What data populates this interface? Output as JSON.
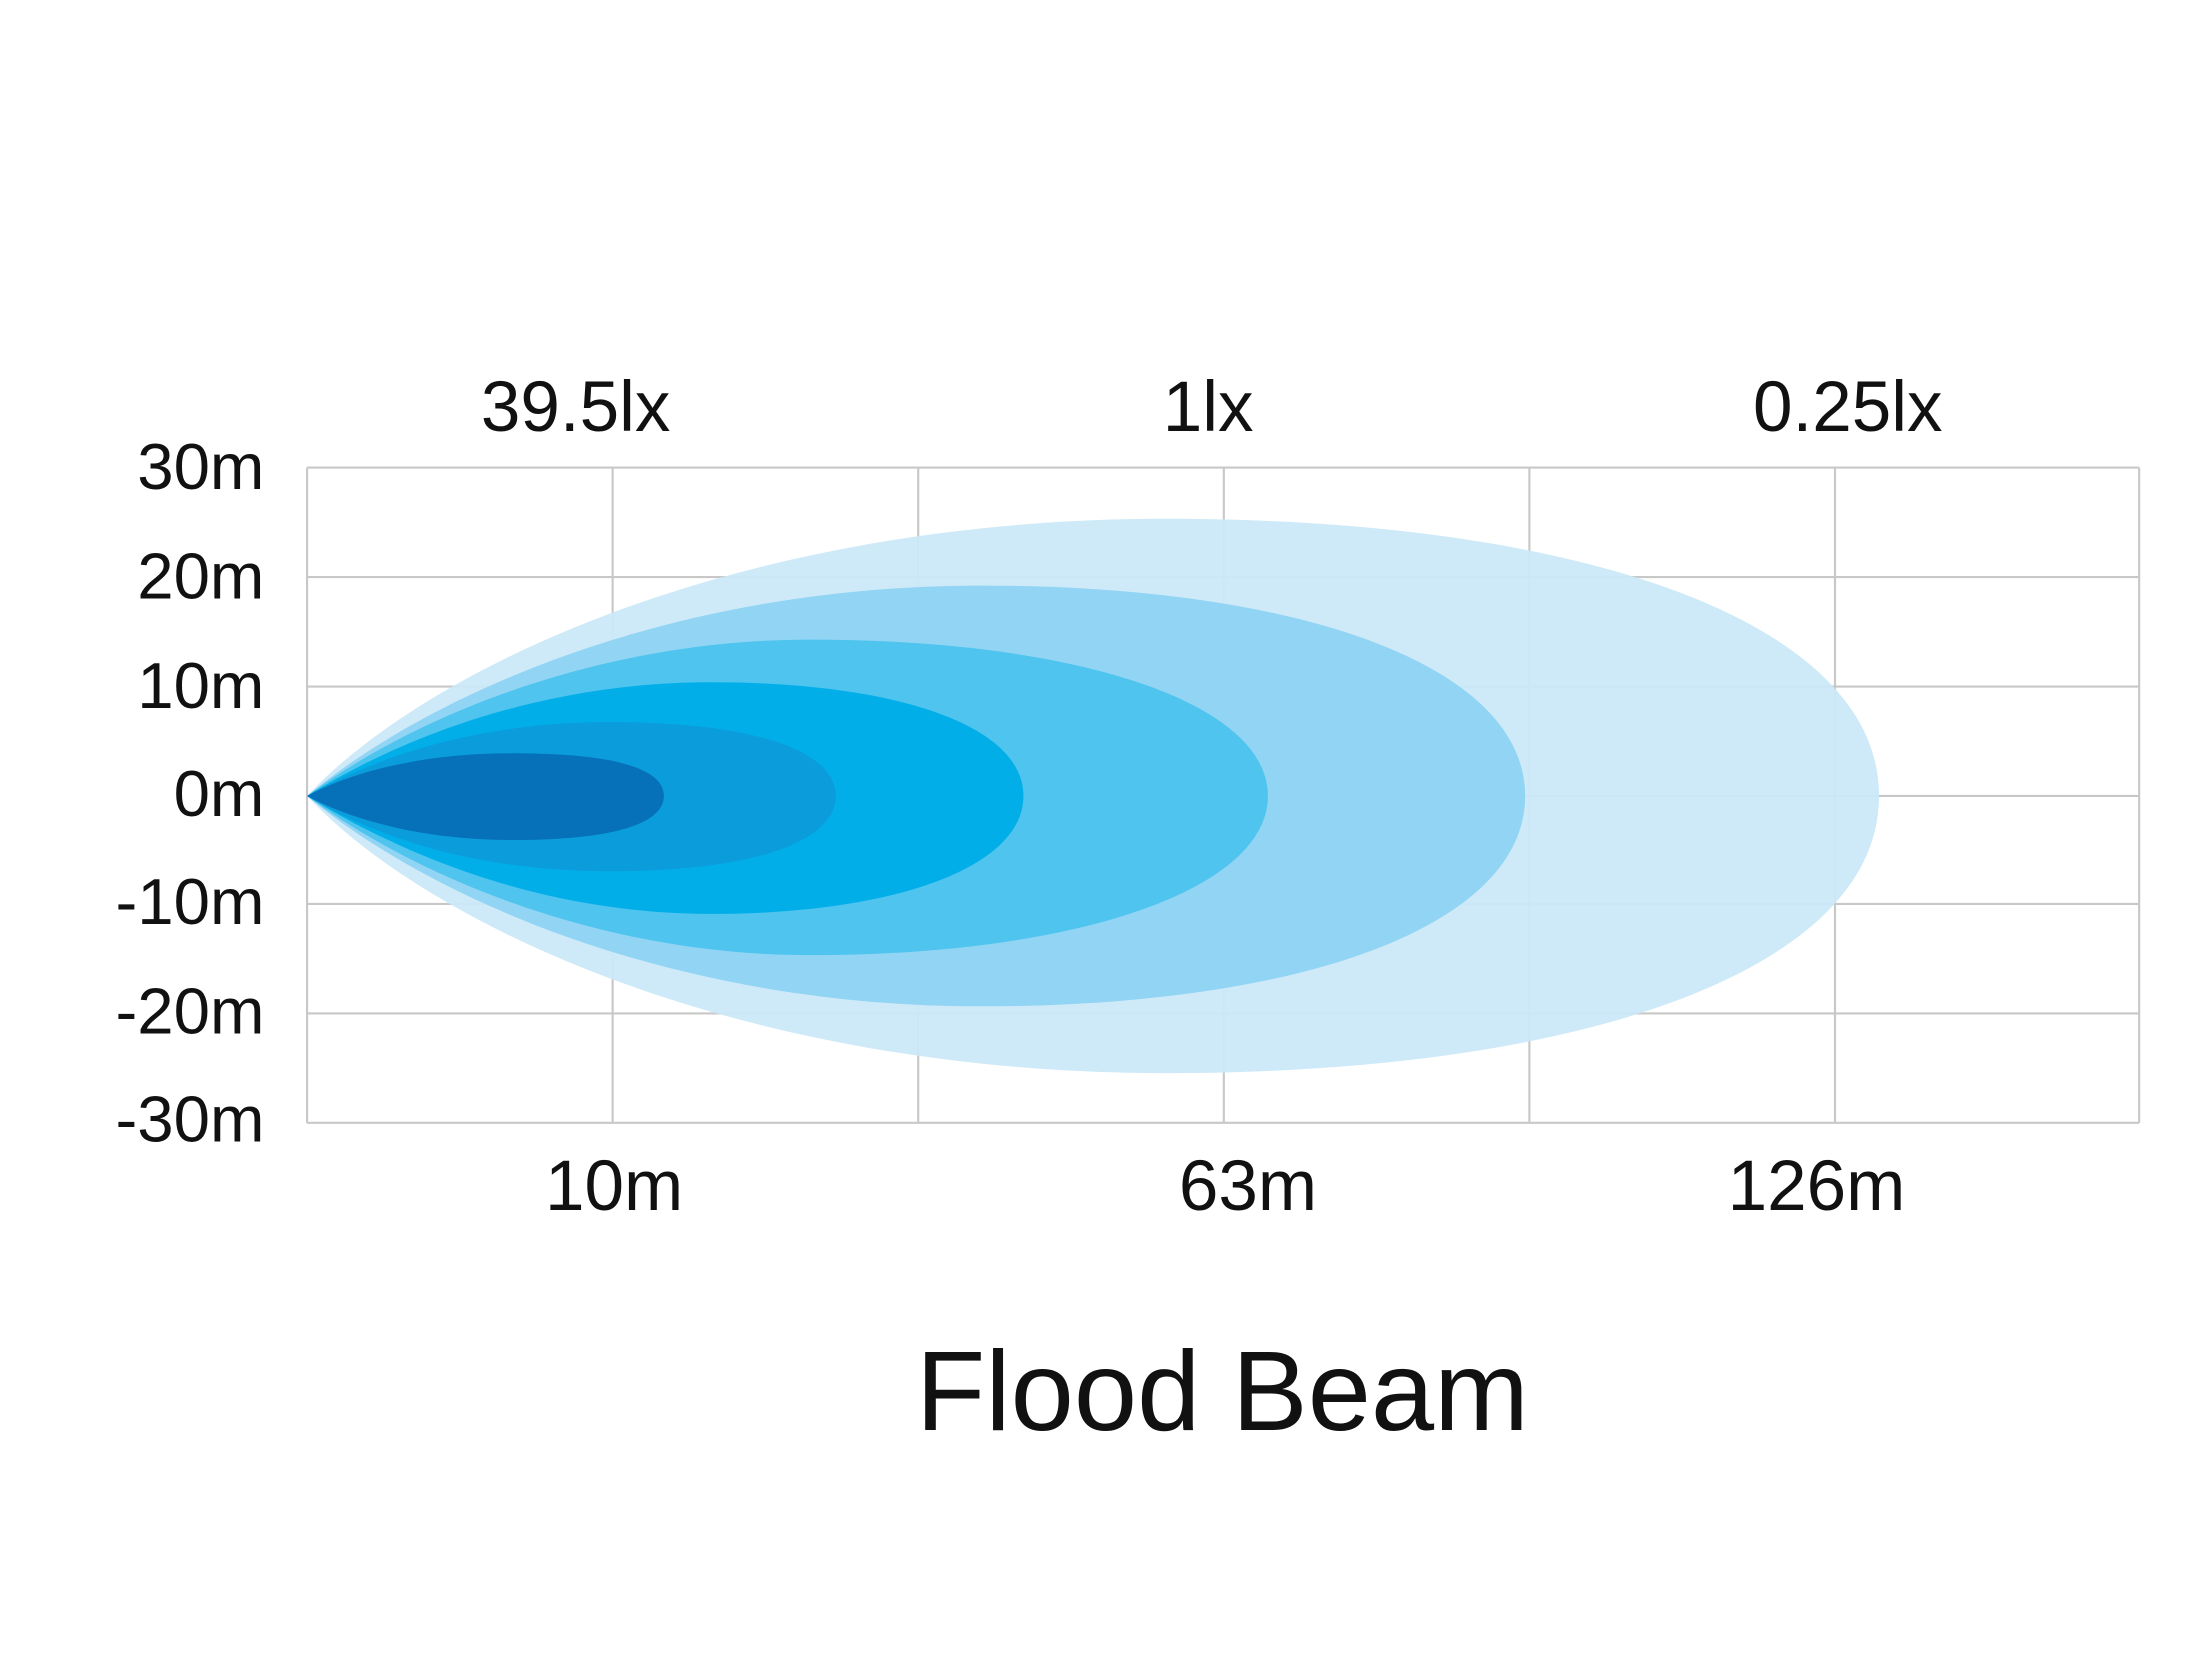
{
  "title": "Flood Beam",
  "lux_labels": [
    "39.5lx",
    "1lx",
    "0.25lx"
  ],
  "y_labels": [
    "30m",
    "20m",
    "10m",
    "0m",
    "-10m",
    "-20m",
    "-30m"
  ],
  "x_labels": [
    "10m",
    "63m",
    "126m"
  ]
}
